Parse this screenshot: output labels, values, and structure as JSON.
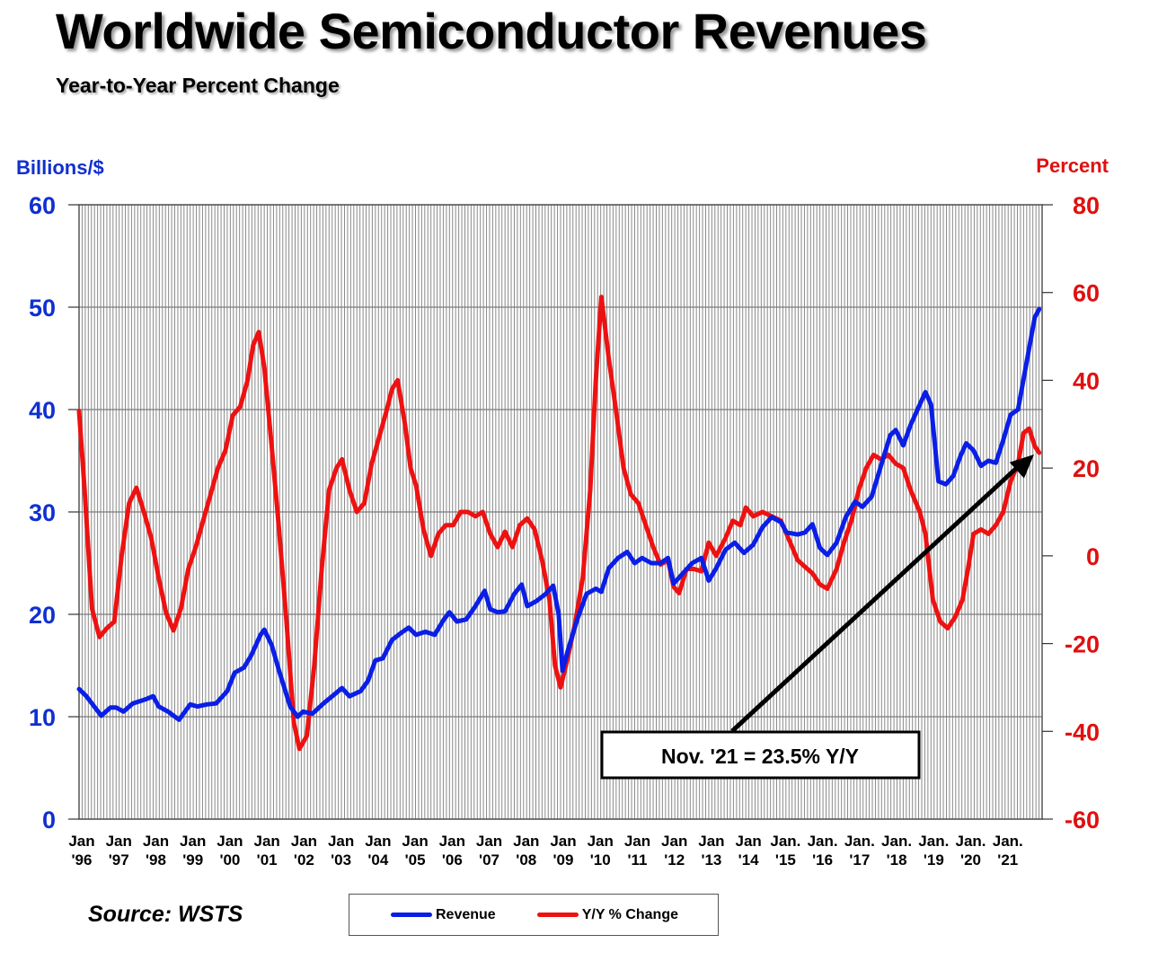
{
  "header": {
    "title": "Worldwide Semiconductor Revenues",
    "subtitle": "Year-to-Year Percent Change"
  },
  "source": "Source: WSTS",
  "colors": {
    "revenue": "#0a1ee6",
    "yoy": "#ee1111",
    "left_axis": "#1030d0",
    "right_axis": "#e01010"
  },
  "chart_data": {
    "type": "line",
    "x_tick_labels": [
      {
        "l1": "Jan",
        "l2": "'96",
        "t": 1996
      },
      {
        "l1": "Jan",
        "l2": "'97",
        "t": 1997
      },
      {
        "l1": "Jan",
        "l2": "'98",
        "t": 1998
      },
      {
        "l1": "Jan",
        "l2": "'99",
        "t": 1999
      },
      {
        "l1": "Jan",
        "l2": "'00",
        "t": 2000
      },
      {
        "l1": "Jan",
        "l2": "'01",
        "t": 2001
      },
      {
        "l1": "Jan",
        "l2": "'02",
        "t": 2002
      },
      {
        "l1": "Jan",
        "l2": "'03",
        "t": 2003
      },
      {
        "l1": "Jan",
        "l2": "'04",
        "t": 2004
      },
      {
        "l1": "Jan",
        "l2": "'05",
        "t": 2005
      },
      {
        "l1": "Jan",
        "l2": "'06",
        "t": 2006
      },
      {
        "l1": "Jan",
        "l2": "'07",
        "t": 2007
      },
      {
        "l1": "Jan",
        "l2": "'08",
        "t": 2008
      },
      {
        "l1": "Jan",
        "l2": "'09",
        "t": 2009
      },
      {
        "l1": "Jan",
        "l2": "'10",
        "t": 2010
      },
      {
        "l1": "Jan",
        "l2": "'11",
        "t": 2011
      },
      {
        "l1": "Jan",
        "l2": "'12",
        "t": 2012
      },
      {
        "l1": "Jan",
        "l2": "'13",
        "t": 2013
      },
      {
        "l1": "Jan",
        "l2": "'14",
        "t": 2014
      },
      {
        "l1": "Jan.",
        "l2": "'15",
        "t": 2015
      },
      {
        "l1": "Jan.",
        "l2": "'16",
        "t": 2016
      },
      {
        "l1": "Jan.",
        "l2": "'17",
        "t": 2017
      },
      {
        "l1": "Jan.",
        "l2": "'18",
        "t": 2018
      },
      {
        "l1": "Jan.",
        "l2": "'19",
        "t": 2019
      },
      {
        "l1": "Jan.",
        "l2": "'20",
        "t": 2020
      },
      {
        "l1": "Jan.",
        "l2": "'21",
        "t": 2021
      }
    ],
    "xlim": [
      1996,
      2022
    ],
    "left_axis": {
      "label": "Billions/$",
      "ylim": [
        0,
        60
      ],
      "ticks": [
        0,
        10,
        20,
        30,
        40,
        50,
        60
      ]
    },
    "right_axis": {
      "label": "Percent",
      "ylim": [
        -60,
        80
      ],
      "ticks": [
        -60,
        -40,
        -20,
        0,
        20,
        40,
        60,
        80
      ]
    },
    "grid": "vertical monthly gridlines, horizontal at left-axis ticks",
    "legend": {
      "placement": "bottom-center",
      "entries": [
        "Revenue",
        "Y/Y % Change"
      ]
    },
    "annotation": {
      "text": "Nov. '21 = 23.5% Y/Y",
      "points_to": {
        "t": 2021.83,
        "yoy": 23.5
      }
    },
    "series": [
      {
        "name": "Revenue",
        "axis": "left",
        "points": [
          [
            1996.0,
            12.7
          ],
          [
            1996.2,
            12.0
          ],
          [
            1996.45,
            10.8
          ],
          [
            1996.6,
            10.1
          ],
          [
            1996.85,
            10.9
          ],
          [
            1997.0,
            10.9
          ],
          [
            1997.2,
            10.5
          ],
          [
            1997.45,
            11.3
          ],
          [
            1997.8,
            11.7
          ],
          [
            1998.0,
            12.0
          ],
          [
            1998.15,
            11.0
          ],
          [
            1998.4,
            10.5
          ],
          [
            1998.7,
            9.7
          ],
          [
            1999.0,
            11.2
          ],
          [
            1999.2,
            11.0
          ],
          [
            1999.45,
            11.2
          ],
          [
            1999.7,
            11.3
          ],
          [
            2000.0,
            12.5
          ],
          [
            2000.2,
            14.3
          ],
          [
            2000.45,
            14.8
          ],
          [
            2000.65,
            16.0
          ],
          [
            2000.9,
            18.0
          ],
          [
            2001.0,
            18.5
          ],
          [
            2001.2,
            17.0
          ],
          [
            2001.4,
            14.5
          ],
          [
            2001.7,
            11.0
          ],
          [
            2001.9,
            10.0
          ],
          [
            2002.05,
            10.5
          ],
          [
            2002.3,
            10.3
          ],
          [
            2002.6,
            11.3
          ],
          [
            2002.9,
            12.2
          ],
          [
            2003.1,
            12.8
          ],
          [
            2003.3,
            12.0
          ],
          [
            2003.6,
            12.5
          ],
          [
            2003.8,
            13.5
          ],
          [
            2004.0,
            15.5
          ],
          [
            2004.2,
            15.7
          ],
          [
            2004.45,
            17.5
          ],
          [
            2004.7,
            18.2
          ],
          [
            2004.9,
            18.7
          ],
          [
            2005.1,
            18.0
          ],
          [
            2005.35,
            18.3
          ],
          [
            2005.6,
            18.0
          ],
          [
            2005.85,
            19.5
          ],
          [
            2006.0,
            20.2
          ],
          [
            2006.2,
            19.3
          ],
          [
            2006.45,
            19.5
          ],
          [
            2006.7,
            20.8
          ],
          [
            2006.95,
            22.3
          ],
          [
            2007.1,
            20.5
          ],
          [
            2007.3,
            20.2
          ],
          [
            2007.5,
            20.3
          ],
          [
            2007.75,
            22.0
          ],
          [
            2007.95,
            22.9
          ],
          [
            2008.1,
            20.8
          ],
          [
            2008.35,
            21.3
          ],
          [
            2008.6,
            22.0
          ],
          [
            2008.8,
            22.8
          ],
          [
            2008.95,
            20.0
          ],
          [
            2009.05,
            14.5
          ],
          [
            2009.2,
            16.5
          ],
          [
            2009.45,
            19.5
          ],
          [
            2009.7,
            22.0
          ],
          [
            2009.95,
            22.5
          ],
          [
            2010.1,
            22.2
          ],
          [
            2010.3,
            24.5
          ],
          [
            2010.55,
            25.5
          ],
          [
            2010.8,
            26.1
          ],
          [
            2011.0,
            25.0
          ],
          [
            2011.2,
            25.5
          ],
          [
            2011.45,
            25.0
          ],
          [
            2011.7,
            25.0
          ],
          [
            2011.9,
            25.5
          ],
          [
            2012.05,
            23.0
          ],
          [
            2012.3,
            24.0
          ],
          [
            2012.55,
            25.0
          ],
          [
            2012.8,
            25.5
          ],
          [
            2013.0,
            23.3
          ],
          [
            2013.2,
            24.5
          ],
          [
            2013.45,
            26.3
          ],
          [
            2013.7,
            27.0
          ],
          [
            2013.95,
            26.0
          ],
          [
            2014.2,
            26.8
          ],
          [
            2014.45,
            28.5
          ],
          [
            2014.7,
            29.5
          ],
          [
            2014.95,
            29.0
          ],
          [
            2015.1,
            28.0
          ],
          [
            2015.4,
            27.8
          ],
          [
            2015.6,
            28.0
          ],
          [
            2015.8,
            28.8
          ],
          [
            2016.0,
            26.5
          ],
          [
            2016.2,
            25.8
          ],
          [
            2016.45,
            27.0
          ],
          [
            2016.7,
            29.5
          ],
          [
            2016.95,
            31.0
          ],
          [
            2017.15,
            30.5
          ],
          [
            2017.4,
            31.5
          ],
          [
            2017.65,
            34.5
          ],
          [
            2017.9,
            37.5
          ],
          [
            2018.05,
            38.0
          ],
          [
            2018.25,
            36.5
          ],
          [
            2018.45,
            38.5
          ],
          [
            2018.7,
            40.5
          ],
          [
            2018.85,
            41.7
          ],
          [
            2019.0,
            40.5
          ],
          [
            2019.2,
            33.0
          ],
          [
            2019.4,
            32.7
          ],
          [
            2019.6,
            33.5
          ],
          [
            2019.8,
            35.5
          ],
          [
            2019.95,
            36.7
          ],
          [
            2020.15,
            36.0
          ],
          [
            2020.35,
            34.5
          ],
          [
            2020.55,
            35.0
          ],
          [
            2020.75,
            34.8
          ],
          [
            2020.95,
            37.0
          ],
          [
            2021.15,
            39.5
          ],
          [
            2021.35,
            40.0
          ],
          [
            2021.5,
            43.0
          ],
          [
            2021.65,
            46.0
          ],
          [
            2021.8,
            49.0
          ],
          [
            2021.92,
            49.8
          ]
        ]
      },
      {
        "name": "Y/Y % Change",
        "axis": "right",
        "points": [
          [
            1996.0,
            33.0
          ],
          [
            1996.15,
            15.0
          ],
          [
            1996.35,
            -12.0
          ],
          [
            1996.55,
            -18.5
          ],
          [
            1996.75,
            -16.5
          ],
          [
            1996.95,
            -15.0
          ],
          [
            1997.15,
            0.0
          ],
          [
            1997.35,
            12.0
          ],
          [
            1997.55,
            15.5
          ],
          [
            1997.75,
            10.0
          ],
          [
            1997.95,
            4.0
          ],
          [
            1998.15,
            -5.0
          ],
          [
            1998.35,
            -13.0
          ],
          [
            1998.55,
            -17.0
          ],
          [
            1998.75,
            -12.0
          ],
          [
            1998.95,
            -3.0
          ],
          [
            1999.15,
            2.0
          ],
          [
            1999.35,
            8.0
          ],
          [
            1999.55,
            14.0
          ],
          [
            1999.75,
            20.0
          ],
          [
            1999.95,
            24.0
          ],
          [
            2000.15,
            32.0
          ],
          [
            2000.35,
            34.0
          ],
          [
            2000.55,
            40.0
          ],
          [
            2000.7,
            48.0
          ],
          [
            2000.85,
            51.0
          ],
          [
            2001.0,
            43.0
          ],
          [
            2001.2,
            25.0
          ],
          [
            2001.4,
            6.0
          ],
          [
            2001.6,
            -15.0
          ],
          [
            2001.8,
            -38.0
          ],
          [
            2001.95,
            -44.0
          ],
          [
            2002.15,
            -41.0
          ],
          [
            2002.35,
            -25.0
          ],
          [
            2002.55,
            -3.0
          ],
          [
            2002.75,
            15.0
          ],
          [
            2002.95,
            20.0
          ],
          [
            2003.1,
            22.0
          ],
          [
            2003.3,
            15.0
          ],
          [
            2003.5,
            10.0
          ],
          [
            2003.7,
            12.0
          ],
          [
            2003.9,
            21.0
          ],
          [
            2004.1,
            27.0
          ],
          [
            2004.3,
            33.0
          ],
          [
            2004.45,
            38.0
          ],
          [
            2004.6,
            40.0
          ],
          [
            2004.8,
            30.0
          ],
          [
            2004.95,
            20.0
          ],
          [
            2005.1,
            16.0
          ],
          [
            2005.3,
            6.0
          ],
          [
            2005.5,
            0.0
          ],
          [
            2005.7,
            5.0
          ],
          [
            2005.9,
            7.0
          ],
          [
            2006.1,
            7.0
          ],
          [
            2006.3,
            10.0
          ],
          [
            2006.5,
            10.0
          ],
          [
            2006.7,
            9.0
          ],
          [
            2006.9,
            10.0
          ],
          [
            2007.1,
            5.0
          ],
          [
            2007.3,
            2.0
          ],
          [
            2007.5,
            5.5
          ],
          [
            2007.7,
            2.0
          ],
          [
            2007.9,
            7.0
          ],
          [
            2008.1,
            8.5
          ],
          [
            2008.3,
            6.0
          ],
          [
            2008.5,
            -1.0
          ],
          [
            2008.7,
            -10.0
          ],
          [
            2008.85,
            -25.0
          ],
          [
            2009.0,
            -30.0
          ],
          [
            2009.2,
            -23.0
          ],
          [
            2009.4,
            -15.0
          ],
          [
            2009.6,
            -5.0
          ],
          [
            2009.8,
            15.0
          ],
          [
            2009.95,
            40.0
          ],
          [
            2010.1,
            59.0
          ],
          [
            2010.3,
            45.0
          ],
          [
            2010.5,
            33.0
          ],
          [
            2010.7,
            20.0
          ],
          [
            2010.9,
            14.0
          ],
          [
            2011.1,
            12.0
          ],
          [
            2011.3,
            7.0
          ],
          [
            2011.5,
            2.0
          ],
          [
            2011.7,
            -2.0
          ],
          [
            2011.9,
            -1.0
          ],
          [
            2012.05,
            -7.0
          ],
          [
            2012.2,
            -8.5
          ],
          [
            2012.4,
            -3.0
          ],
          [
            2012.6,
            -3.0
          ],
          [
            2012.8,
            -3.5
          ],
          [
            2013.0,
            3.0
          ],
          [
            2013.2,
            0.0
          ],
          [
            2013.45,
            4.0
          ],
          [
            2013.65,
            8.0
          ],
          [
            2013.85,
            7.0
          ],
          [
            2014.0,
            11.0
          ],
          [
            2014.2,
            9.0
          ],
          [
            2014.45,
            10.0
          ],
          [
            2014.7,
            9.0
          ],
          [
            2014.95,
            8.0
          ],
          [
            2015.15,
            4.0
          ],
          [
            2015.4,
            -1.0
          ],
          [
            2015.6,
            -2.5
          ],
          [
            2015.8,
            -4.0
          ],
          [
            2016.0,
            -6.5
          ],
          [
            2016.2,
            -7.5
          ],
          [
            2016.45,
            -3.0
          ],
          [
            2016.65,
            3.0
          ],
          [
            2016.85,
            8.0
          ],
          [
            2017.05,
            15.0
          ],
          [
            2017.25,
            20.0
          ],
          [
            2017.45,
            23.0
          ],
          [
            2017.65,
            22.0
          ],
          [
            2017.85,
            23.0
          ],
          [
            2018.05,
            21.0
          ],
          [
            2018.25,
            20.0
          ],
          [
            2018.45,
            15.0
          ],
          [
            2018.7,
            10.0
          ],
          [
            2018.85,
            5.0
          ],
          [
            2019.05,
            -10.0
          ],
          [
            2019.25,
            -15.0
          ],
          [
            2019.45,
            -16.5
          ],
          [
            2019.65,
            -14.0
          ],
          [
            2019.85,
            -10.0
          ],
          [
            2020.0,
            -3.0
          ],
          [
            2020.15,
            5.0
          ],
          [
            2020.35,
            6.0
          ],
          [
            2020.55,
            5.0
          ],
          [
            2020.75,
            7.0
          ],
          [
            2020.95,
            10.0
          ],
          [
            2021.15,
            17.0
          ],
          [
            2021.35,
            21.0
          ],
          [
            2021.5,
            28.0
          ],
          [
            2021.65,
            29.0
          ],
          [
            2021.8,
            25.0
          ],
          [
            2021.92,
            23.5
          ]
        ]
      }
    ]
  }
}
